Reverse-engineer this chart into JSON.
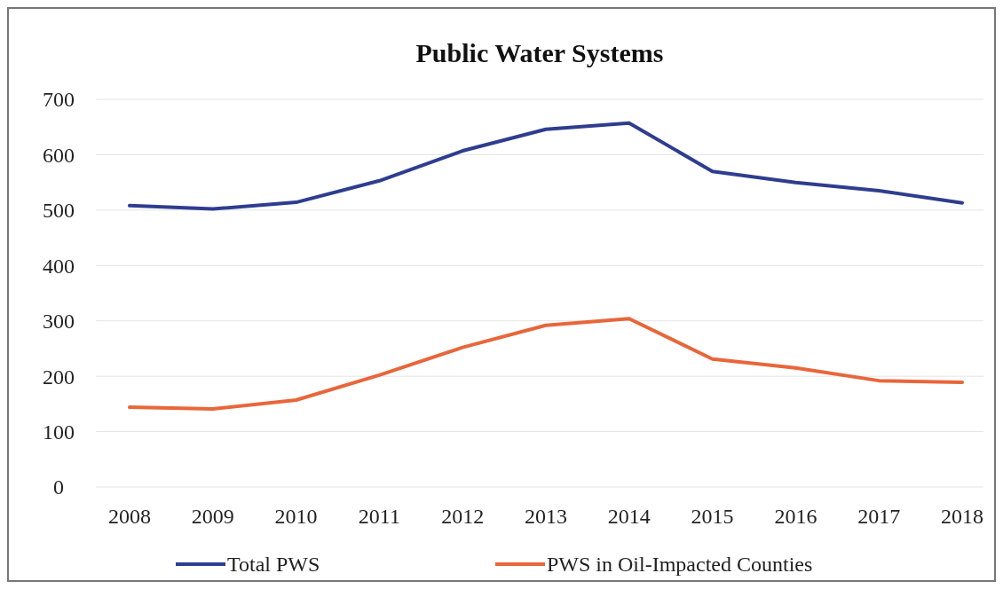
{
  "chart_data": {
    "type": "line",
    "title": "Public Water Systems",
    "categories": [
      "2008",
      "2009",
      "2010",
      "2011",
      "2012",
      "2013",
      "2014",
      "2015",
      "2016",
      "2017",
      "2018"
    ],
    "series": [
      {
        "name": "Total PWS",
        "color": "#2e3d8f",
        "values": [
          508,
          502,
          514,
          553,
          607,
          646,
          657,
          570,
          550,
          535,
          513
        ]
      },
      {
        "name": "PWS in Oil-Impacted Counties",
        "color": "#e8663a",
        "values": [
          144,
          141,
          157,
          202,
          252,
          292,
          304,
          231,
          215,
          192,
          189
        ]
      }
    ],
    "ylim": [
      0,
      700
    ],
    "yticks": [
      0,
      100,
      200,
      300,
      400,
      500,
      600,
      700
    ],
    "grid": "y",
    "legend": "bottom",
    "marker": "none",
    "line_style": "solid"
  }
}
